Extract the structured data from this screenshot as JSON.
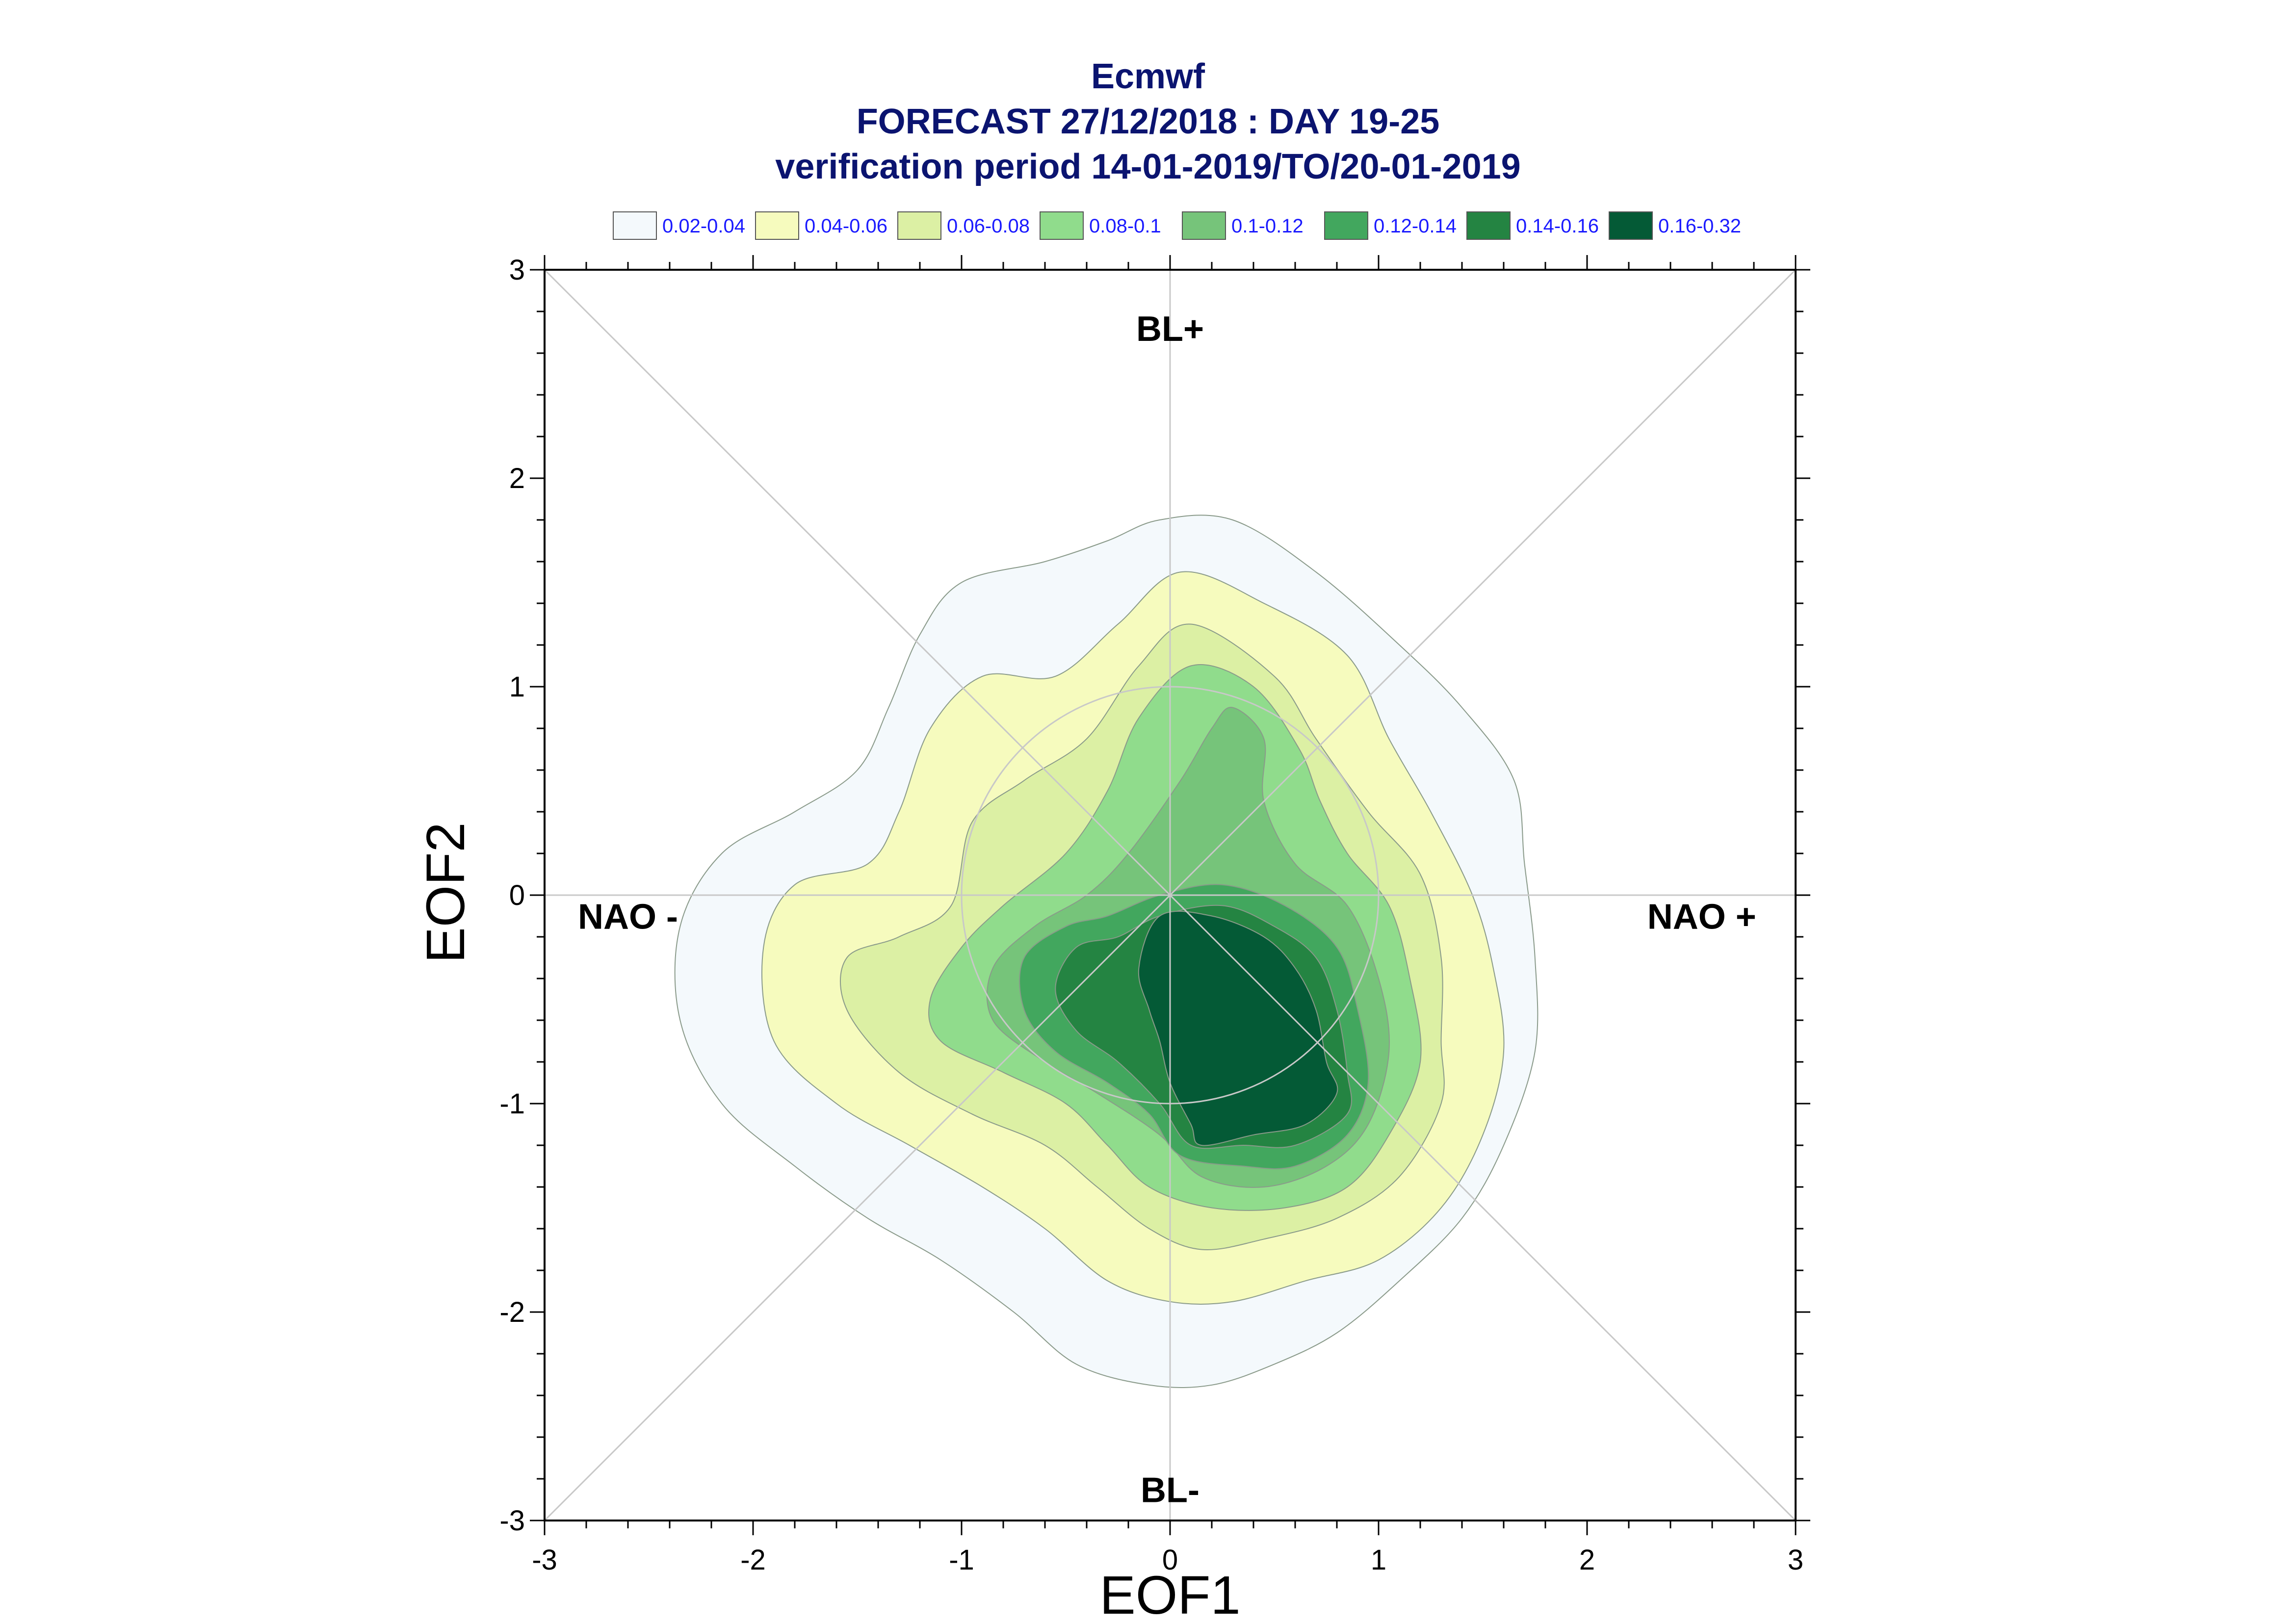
{
  "chart_data": {
    "type": "contour",
    "title_lines": [
      "Ecmwf",
      "FORECAST 27/12/2018 : DAY 19-25",
      "verification period 14-01-2019/TO/20-01-2019"
    ],
    "xlabel": "EOF1",
    "ylabel": "EOF2",
    "xlim": [
      -3,
      3
    ],
    "ylim": [
      -3,
      3
    ],
    "xticks": [
      "-3",
      "-2",
      "-1",
      "0",
      "1",
      "2",
      "3"
    ],
    "yticks": [
      "3",
      "2",
      "1",
      "0",
      "-1",
      "-2",
      "-3"
    ],
    "xtick_values": [
      -3,
      -2,
      -1,
      0,
      1,
      2,
      3
    ],
    "ytick_values": [
      3,
      2,
      1,
      0,
      -1,
      -2,
      -3
    ],
    "legend": [
      {
        "label": "0.02-0.04",
        "color": "#f4f9fc"
      },
      {
        "label": "0.04-0.06",
        "color": "#f6fbbe"
      },
      {
        "label": "0.06-0.08",
        "color": "#dcf0a4"
      },
      {
        "label": "0.08-0.1",
        "color": "#90dc8c"
      },
      {
        "label": "0.1-0.12",
        "color": "#76c47a"
      },
      {
        "label": "0.12-0.14",
        "color": "#42a75e"
      },
      {
        "label": "0.14-0.16",
        "color": "#248442"
      },
      {
        "label": "0.16-0.32",
        "color": "#045a36"
      }
    ],
    "regimes": [
      {
        "label": "BL+",
        "x": 0,
        "y": 2.72
      },
      {
        "label": "BL-",
        "x": 0,
        "y": -2.85
      },
      {
        "label": "NAO -",
        "x": -2.6,
        "y": -0.1
      },
      {
        "label": "NAO +",
        "x": 2.55,
        "y": -0.1
      }
    ],
    "reference_circle_radius": 1,
    "contours": [
      {
        "level": "0.02-0.04",
        "points": [
          [
            -0.05,
            1.8
          ],
          [
            0.3,
            1.8
          ],
          [
            0.7,
            1.55
          ],
          [
            1.1,
            1.2
          ],
          [
            1.4,
            0.9
          ],
          [
            1.65,
            0.55
          ],
          [
            1.7,
            0.15
          ],
          [
            1.75,
            -0.3
          ],
          [
            1.75,
            -0.75
          ],
          [
            1.6,
            -1.2
          ],
          [
            1.4,
            -1.55
          ],
          [
            1.1,
            -1.85
          ],
          [
            0.8,
            -2.1
          ],
          [
            0.5,
            -2.25
          ],
          [
            0.2,
            -2.35
          ],
          [
            -0.1,
            -2.35
          ],
          [
            -0.45,
            -2.25
          ],
          [
            -0.75,
            -2.0
          ],
          [
            -1.1,
            -1.75
          ],
          [
            -1.45,
            -1.55
          ],
          [
            -1.8,
            -1.3
          ],
          [
            -2.15,
            -1.0
          ],
          [
            -2.35,
            -0.6
          ],
          [
            -2.35,
            -0.15
          ],
          [
            -2.15,
            0.2
          ],
          [
            -1.8,
            0.4
          ],
          [
            -1.5,
            0.6
          ],
          [
            -1.35,
            0.9
          ],
          [
            -1.2,
            1.25
          ],
          [
            -1.0,
            1.5
          ],
          [
            -0.6,
            1.6
          ],
          [
            -0.3,
            1.7
          ]
        ]
      },
      {
        "level": "0.04-0.06",
        "points": [
          [
            0.05,
            1.55
          ],
          [
            0.45,
            1.4
          ],
          [
            0.85,
            1.15
          ],
          [
            1.05,
            0.75
          ],
          [
            1.25,
            0.4
          ],
          [
            1.45,
            0.0
          ],
          [
            1.55,
            -0.35
          ],
          [
            1.6,
            -0.75
          ],
          [
            1.5,
            -1.15
          ],
          [
            1.3,
            -1.5
          ],
          [
            1.0,
            -1.75
          ],
          [
            0.65,
            -1.85
          ],
          [
            0.3,
            -1.95
          ],
          [
            0.0,
            -1.95
          ],
          [
            -0.3,
            -1.85
          ],
          [
            -0.6,
            -1.6
          ],
          [
            -0.9,
            -1.4
          ],
          [
            -1.25,
            -1.2
          ],
          [
            -1.6,
            -1.0
          ],
          [
            -1.9,
            -0.7
          ],
          [
            -1.95,
            -0.25
          ],
          [
            -1.8,
            0.05
          ],
          [
            -1.45,
            0.15
          ],
          [
            -1.3,
            0.4
          ],
          [
            -1.15,
            0.8
          ],
          [
            -0.9,
            1.05
          ],
          [
            -0.55,
            1.05
          ],
          [
            -0.25,
            1.3
          ]
        ]
      },
      {
        "level": "0.06-0.08",
        "points": [
          [
            0.1,
            1.3
          ],
          [
            0.5,
            1.05
          ],
          [
            0.7,
            0.75
          ],
          [
            0.95,
            0.4
          ],
          [
            1.2,
            0.1
          ],
          [
            1.3,
            -0.3
          ],
          [
            1.3,
            -0.7
          ],
          [
            1.3,
            -1.0
          ],
          [
            1.1,
            -1.35
          ],
          [
            0.8,
            -1.55
          ],
          [
            0.45,
            -1.65
          ],
          [
            0.15,
            -1.7
          ],
          [
            -0.1,
            -1.6
          ],
          [
            -0.35,
            -1.4
          ],
          [
            -0.6,
            -1.2
          ],
          [
            -0.95,
            -1.05
          ],
          [
            -1.3,
            -0.85
          ],
          [
            -1.55,
            -0.55
          ],
          [
            -1.55,
            -0.3
          ],
          [
            -1.3,
            -0.2
          ],
          [
            -1.05,
            -0.05
          ],
          [
            -0.95,
            0.35
          ],
          [
            -0.7,
            0.55
          ],
          [
            -0.4,
            0.75
          ],
          [
            -0.15,
            1.1
          ]
        ]
      },
      {
        "level": "0.08-0.1",
        "points": [
          [
            0.1,
            1.1
          ],
          [
            0.4,
            1.0
          ],
          [
            0.62,
            0.7
          ],
          [
            0.72,
            0.45
          ],
          [
            0.85,
            0.2
          ],
          [
            1.05,
            -0.05
          ],
          [
            1.15,
            -0.4
          ],
          [
            1.2,
            -0.8
          ],
          [
            1.05,
            -1.15
          ],
          [
            0.85,
            -1.4
          ],
          [
            0.55,
            -1.5
          ],
          [
            0.2,
            -1.5
          ],
          [
            -0.1,
            -1.4
          ],
          [
            -0.3,
            -1.2
          ],
          [
            -0.5,
            -1.0
          ],
          [
            -0.8,
            -0.85
          ],
          [
            -1.1,
            -0.7
          ],
          [
            -1.15,
            -0.5
          ],
          [
            -1.0,
            -0.25
          ],
          [
            -0.8,
            -0.05
          ],
          [
            -0.5,
            0.2
          ],
          [
            -0.3,
            0.5
          ],
          [
            -0.15,
            0.85
          ]
        ]
      },
      {
        "level": "0.1-0.12",
        "points": [
          [
            0.3,
            0.9
          ],
          [
            0.45,
            0.75
          ],
          [
            0.45,
            0.45
          ],
          [
            0.6,
            0.15
          ],
          [
            0.85,
            -0.05
          ],
          [
            1.0,
            -0.4
          ],
          [
            1.05,
            -0.75
          ],
          [
            0.95,
            -1.1
          ],
          [
            0.75,
            -1.3
          ],
          [
            0.45,
            -1.4
          ],
          [
            0.15,
            -1.35
          ],
          [
            -0.05,
            -1.15
          ],
          [
            -0.35,
            -0.95
          ],
          [
            -0.6,
            -0.8
          ],
          [
            -0.85,
            -0.6
          ],
          [
            -0.85,
            -0.35
          ],
          [
            -0.65,
            -0.15
          ],
          [
            -0.4,
            0.0
          ],
          [
            -0.2,
            0.2
          ],
          [
            0.05,
            0.55
          ],
          [
            0.2,
            0.8
          ]
        ]
      },
      {
        "level": "0.12-0.14",
        "points": [
          [
            -0.05,
            0.0
          ],
          [
            0.25,
            0.05
          ],
          [
            0.55,
            -0.05
          ],
          [
            0.8,
            -0.25
          ],
          [
            0.9,
            -0.55
          ],
          [
            0.95,
            -0.9
          ],
          [
            0.85,
            -1.15
          ],
          [
            0.6,
            -1.3
          ],
          [
            0.35,
            -1.3
          ],
          [
            0.05,
            -1.25
          ],
          [
            -0.1,
            -1.05
          ],
          [
            -0.3,
            -0.9
          ],
          [
            -0.55,
            -0.75
          ],
          [
            -0.7,
            -0.55
          ],
          [
            -0.7,
            -0.3
          ],
          [
            -0.5,
            -0.15
          ],
          [
            -0.3,
            -0.1
          ]
        ]
      },
      {
        "level": "0.14-0.16",
        "points": [
          [
            -0.05,
            -0.1
          ],
          [
            0.25,
            -0.05
          ],
          [
            0.5,
            -0.15
          ],
          [
            0.7,
            -0.3
          ],
          [
            0.8,
            -0.55
          ],
          [
            0.85,
            -0.85
          ],
          [
            0.85,
            -1.05
          ],
          [
            0.6,
            -1.2
          ],
          [
            0.35,
            -1.2
          ],
          [
            0.1,
            -1.2
          ],
          [
            -0.05,
            -1.0
          ],
          [
            -0.25,
            -0.8
          ],
          [
            -0.45,
            -0.65
          ],
          [
            -0.55,
            -0.45
          ],
          [
            -0.45,
            -0.25
          ],
          [
            -0.25,
            -0.2
          ]
        ]
      },
      {
        "level": "0.16-0.32",
        "points": [
          [
            -0.05,
            -0.1
          ],
          [
            0.2,
            -0.1
          ],
          [
            0.45,
            -0.2
          ],
          [
            0.6,
            -0.35
          ],
          [
            0.7,
            -0.55
          ],
          [
            0.75,
            -0.8
          ],
          [
            0.8,
            -0.95
          ],
          [
            0.65,
            -1.1
          ],
          [
            0.4,
            -1.15
          ],
          [
            0.15,
            -1.2
          ],
          [
            0.1,
            -1.1
          ],
          [
            0.0,
            -0.9
          ],
          [
            -0.05,
            -0.7
          ],
          [
            -0.1,
            -0.55
          ],
          [
            -0.15,
            -0.35
          ]
        ]
      }
    ]
  }
}
